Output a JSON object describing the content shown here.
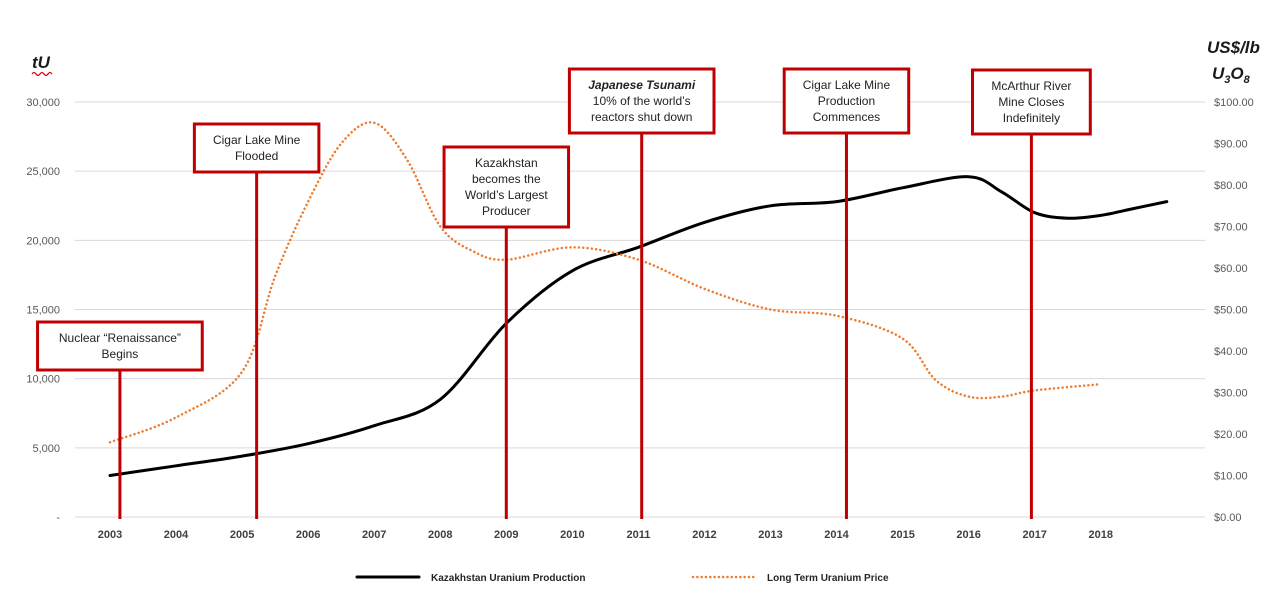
{
  "chart_data": {
    "type": "line",
    "title": "",
    "xlabel": "",
    "x": [
      2003,
      2004,
      2005,
      2006,
      2007,
      2008,
      2009,
      2010,
      2011,
      2012,
      2013,
      2014,
      2015,
      2016,
      2017,
      2018
    ],
    "x_tick_labels": [
      "2003",
      "2004",
      "2005",
      "2006",
      "2007",
      "2008",
      "2009",
      "2010",
      "2011",
      "2012",
      "2013",
      "2014",
      "2015",
      "2016",
      "2017",
      "2018"
    ],
    "y_left": {
      "label": "tU",
      "range": [
        0,
        30000
      ],
      "tick_values": [
        0,
        5000,
        10000,
        15000,
        20000,
        25000,
        30000
      ],
      "tick_labels": [
        "-",
        "5,000",
        "10,000",
        "15,000",
        "20,000",
        "25,000",
        "30,000"
      ]
    },
    "y_right": {
      "label_line1": "US$/lb",
      "label_line2_main": "U",
      "label_line2_sub1": "3",
      "label_line2_main2": "O",
      "label_line2_sub2": "8",
      "range": [
        0,
        100
      ],
      "tick_values": [
        0,
        10,
        20,
        30,
        40,
        50,
        60,
        70,
        80,
        90,
        100
      ],
      "tick_labels": [
        "$0.00",
        "$10.00",
        "$20.00",
        "$30.00",
        "$40.00",
        "$50.00",
        "$60.00",
        "$70.00",
        "$80.00",
        "$90.00",
        "$100.00"
      ]
    },
    "series": [
      {
        "name": "Kazakhstan Uranium Production",
        "axis": "left",
        "color": "#000000",
        "style": "solid",
        "points": [
          [
            2003,
            3000
          ],
          [
            2004,
            3700
          ],
          [
            2005,
            4400
          ],
          [
            2006,
            5300
          ],
          [
            2007,
            6600
          ],
          [
            2008,
            8500
          ],
          [
            2009,
            14000
          ],
          [
            2010,
            17800
          ],
          [
            2011,
            19500
          ],
          [
            2012,
            21300
          ],
          [
            2013,
            22500
          ],
          [
            2014,
            22800
          ],
          [
            2015,
            23800
          ],
          [
            2016,
            24600
          ],
          [
            2016.5,
            23500
          ],
          [
            2017,
            22000
          ],
          [
            2017.5,
            21600
          ],
          [
            2018,
            21800
          ],
          [
            2018.5,
            22300
          ],
          [
            2019,
            22800
          ]
        ]
      },
      {
        "name": "Long Term Uranium Price",
        "axis": "right",
        "color": "#ED7D31",
        "style": "dotted",
        "points": [
          [
            2003,
            18
          ],
          [
            2004,
            24
          ],
          [
            2005,
            35
          ],
          [
            2005.5,
            58
          ],
          [
            2006,
            76
          ],
          [
            2006.5,
            90
          ],
          [
            2007,
            95
          ],
          [
            2007.5,
            86
          ],
          [
            2008,
            70
          ],
          [
            2008.5,
            64
          ],
          [
            2009,
            62
          ],
          [
            2010,
            65
          ],
          [
            2011,
            62
          ],
          [
            2012,
            55
          ],
          [
            2013,
            50
          ],
          [
            2014,
            48.5
          ],
          [
            2015,
            43
          ],
          [
            2015.5,
            33
          ],
          [
            2016,
            29
          ],
          [
            2016.5,
            29
          ],
          [
            2017,
            30.5
          ],
          [
            2018,
            32
          ]
        ]
      }
    ],
    "annotations": [
      {
        "x": 2003.15,
        "lines": [
          "Nuclear “Renaissance”",
          "Begins"
        ]
      },
      {
        "x": 2005.22,
        "lines": [
          "Cigar Lake Mine",
          "Flooded"
        ]
      },
      {
        "x": 2009.0,
        "lines": [
          "Kazakhstan",
          "becomes the",
          "World’s Largest",
          "Producer"
        ]
      },
      {
        "x": 2011.05,
        "lines": [
          "Japanese Tsunami",
          "10% of the world’s",
          "reactors shut down"
        ],
        "first_line_italic": true
      },
      {
        "x": 2014.15,
        "lines": [
          "Cigar Lake Mine",
          "Production",
          "Commences"
        ]
      },
      {
        "x": 2016.95,
        "lines": [
          "McArthur River",
          "Mine Closes",
          "Indefinitely"
        ]
      }
    ],
    "annotation_color": "#C00000",
    "legend": {
      "position": "bottom",
      "items": [
        {
          "label": "Kazakhstan Uranium Production",
          "color": "#000000",
          "style": "solid"
        },
        {
          "label": "Long Term Uranium Price",
          "color": "#ED7D31",
          "style": "dotted"
        }
      ]
    },
    "grid": true
  }
}
